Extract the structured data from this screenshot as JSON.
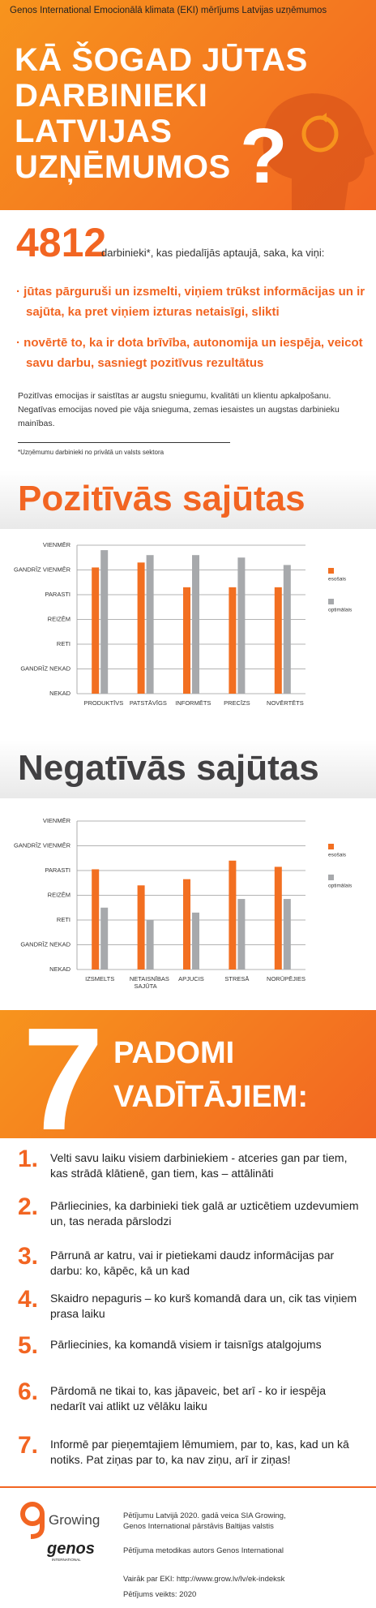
{
  "header": {
    "subtitle": "Genos International Emocionālā klimata (EKI) mērījums Latvijas uzņēmumos",
    "title": [
      "KĀ ŠOGAD JŪTAS",
      "DARBINIEKI",
      "LATVIJAS",
      "UZŅĒMUMOS"
    ],
    "mark": "?"
  },
  "intro": {
    "number": 4812,
    "text": "darbinieki*, kas piedalījās aptaujā, saka, ka viņi:",
    "bullets": [
      "jūtas pārguruši un izsmelti, viņiem trūkst informācijas un ir sajūta, ka pret viņiem izturas netaisīgi, slikti",
      "novērtē to, ka ir dota brīvība, autonomija un iespēja, veicot savu darbu, sasniegt pozitīvus rezultātus"
    ],
    "paragraph": "Pozitīvas emocijas ir saistītas ar augstu sniegumu, kvalitāti un klientu apkalpošanu. Negatīvas emocijas noved pie vāja snieguma, zemas iesaistes un augstas darbinieku mainības.",
    "footnote": "*Uzņēmumu darbinieki no privātā un valsts sektora"
  },
  "chart_data": [
    {
      "type": "bar",
      "title": "Pozitīvās sajūtas",
      "categories": [
        "PRODUKTĪVS",
        "PATSTĀVĪGS",
        "INFORMĒTS",
        "PRECĪZS",
        "NOVĒRTĒTS"
      ],
      "series": [
        {
          "name": "esošais",
          "color": "#f26f21",
          "values": [
            5.1,
            5.3,
            4.3,
            4.3,
            4.3
          ]
        },
        {
          "name": "optimālais",
          "color": "#a7a9ac",
          "values": [
            5.8,
            5.6,
            5.6,
            5.5,
            5.2
          ]
        }
      ],
      "ylim": [
        0,
        6
      ],
      "yticks": [
        {
          "value": 0,
          "label": "NEKAD"
        },
        {
          "value": 1,
          "label": "GANDRĪZ NEKAD"
        },
        {
          "value": 2,
          "label": "RETI"
        },
        {
          "value": 3,
          "label": "REIZĒM"
        },
        {
          "value": 4,
          "label": "PARASTI"
        },
        {
          "value": 5,
          "label": "GANDRĪZ VIENMĒR"
        },
        {
          "value": 6,
          "label": "VIENMĒR"
        }
      ],
      "grid": true
    },
    {
      "type": "bar",
      "title": "Negatīvās sajūtas",
      "categories": [
        "IZSMELTS",
        "NETAISNĪBAS SAJŪTA",
        "APJUCIS",
        "STRESĀ",
        "NORŪPĒJIES"
      ],
      "series": [
        {
          "name": "esošais",
          "color": "#f26f21",
          "values": [
            4.05,
            3.4,
            3.65,
            4.4,
            4.15
          ]
        },
        {
          "name": "optimālais",
          "color": "#a7a9ac",
          "values": [
            2.5,
            2.0,
            2.3,
            2.85,
            2.85
          ]
        }
      ],
      "ylim": [
        0,
        6
      ],
      "yticks": [
        {
          "value": 0,
          "label": "NEKAD"
        },
        {
          "value": 1,
          "label": "GANDRĪZ NEKAD"
        },
        {
          "value": 2,
          "label": "RETI"
        },
        {
          "value": 3,
          "label": "REIZĒM"
        },
        {
          "value": 4,
          "label": "PARASTI"
        },
        {
          "value": 5,
          "label": "GANDRĪZ VIENMĒR"
        },
        {
          "value": 6,
          "label": "VIENMĒR"
        }
      ],
      "grid": true
    }
  ],
  "tips": {
    "number": 7,
    "title": [
      "PADOMI",
      "VADĪTĀJIEM:"
    ],
    "items": [
      {
        "number": "1.",
        "text": "Velti savu laiku visiem darbiniekiem - atceries gan par tiem, kas strādā klātienē, gan tiem, kas – attālināti"
      },
      {
        "number": "2.",
        "text": "Pārliecinies, ka darbinieki tiek galā ar uzticētiem uzdevumiem un, tas nerada pārslodzi"
      },
      {
        "number": "3.",
        "text": "Pārrunā ar katru, vai ir pietiekami daudz informācijas par darbu: ko, kāpēc, kā un kad"
      },
      {
        "number": "4.",
        "text": "Skaidro nepaguris – ko kurš komandā dara un, cik tas viņiem prasa laiku"
      },
      {
        "number": "5.",
        "text": "Pārliecinies, ka komandā visiem ir taisnīgs atalgojums"
      },
      {
        "number": "6.",
        "text": "Pārdomā ne tikai to, kas jāpaveic, bet arī - ko ir iespēja nedarīt vai atlikt uz vēlāku laiku"
      },
      {
        "number": "7.",
        "text": "Informē par pieņemtajiem lēmumiem, par to, kas, kad un kā notiks. Pat ziņas par to, ka nav ziņu, arī ir ziņas!"
      }
    ]
  },
  "footer": {
    "logo_growing": "Growing",
    "logo_genos": "genos",
    "logo_genos_sub": "INTERNATIONAL",
    "lines": [
      "Pētījumu Latvijā 2020. gadā veica SIA Growing, Genos International pārstāvis Baltijas valstis",
      "Pētījuma metodikas autors Genos International",
      "Vairāk par EKI: http://www.grow.lv/lv/ek-indeksk",
      "Pētījums veikts: 2020"
    ]
  }
}
